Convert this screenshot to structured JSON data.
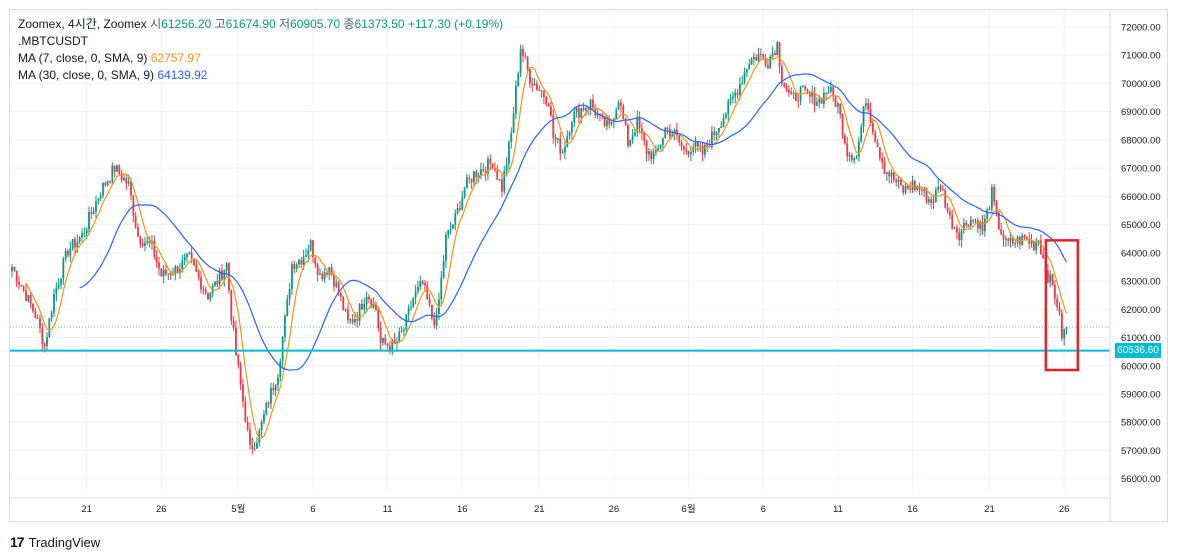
{
  "header": {
    "line1_prefix": "Zoomex, 4시간, Zoomex",
    "open_label": "시",
    "open": "61256.20",
    "high_label": "고",
    "high": "61674.90",
    "low_label": "저",
    "low": "60905.70",
    "close_label": "종",
    "close": "61373.50",
    "change": "+117.30 (+0.19%)",
    "symbol": ".MBTCUSDT",
    "ma7_label": "MA (7, close, 0, SMA, 9)",
    "ma7_value": "62757.97",
    "ma30_label": "MA (30, close, 0, SMA, 9)",
    "ma30_value": "64139.92"
  },
  "footer": {
    "logo": "17",
    "brand": "TradingView"
  },
  "colors": {
    "up": "#089981",
    "down": "#f23645",
    "ma7": "#f7931a",
    "ma30": "#2962ff",
    "hline": "#00bcd4",
    "box": "#e8202c",
    "grid": "#f0f3fa"
  },
  "chart_data": {
    "type": "candlestick",
    "ylim": [
      55600,
      72600
    ],
    "y_ticks": [
      "72000.00",
      "71000.00",
      "70000.00",
      "69000.00",
      "68000.00",
      "67000.00",
      "66000.00",
      "65000.00",
      "64000.00",
      "63000.00",
      "62000.00",
      "61000.00",
      "60000.00",
      "59000.00",
      "58000.00",
      "57000.00",
      "56000.00"
    ],
    "x_ticks": [
      "21",
      "26",
      "5월",
      "6",
      "11",
      "16",
      "21",
      "26",
      "6월",
      "6",
      "11",
      "16",
      "21",
      "26"
    ],
    "horizontal_line": {
      "value": 60536.6,
      "label": "60536.60"
    },
    "last_close": 61373.5,
    "anchors": [
      [
        0,
        63500
      ],
      [
        6,
        62500
      ],
      [
        10,
        61800
      ],
      [
        14,
        60700
      ],
      [
        18,
        62500
      ],
      [
        24,
        64100
      ],
      [
        30,
        64600
      ],
      [
        38,
        66200
      ],
      [
        44,
        67000
      ],
      [
        50,
        66400
      ],
      [
        54,
        64600
      ],
      [
        60,
        64200
      ],
      [
        64,
        63200
      ],
      [
        70,
        63400
      ],
      [
        76,
        63800
      ],
      [
        80,
        63100
      ],
      [
        84,
        62500
      ],
      [
        88,
        63000
      ],
      [
        92,
        63600
      ],
      [
        94,
        61800
      ],
      [
        96,
        60400
      ],
      [
        100,
        58200
      ],
      [
        102,
        57000
      ],
      [
        106,
        57600
      ],
      [
        110,
        58800
      ],
      [
        114,
        59800
      ],
      [
        118,
        62200
      ],
      [
        120,
        63600
      ],
      [
        124,
        63800
      ],
      [
        128,
        64300
      ],
      [
        132,
        63200
      ],
      [
        136,
        63500
      ],
      [
        140,
        62600
      ],
      [
        144,
        61500
      ],
      [
        148,
        61800
      ],
      [
        152,
        62600
      ],
      [
        156,
        62000
      ],
      [
        158,
        60800
      ],
      [
        164,
        60700
      ],
      [
        168,
        61300
      ],
      [
        172,
        62400
      ],
      [
        176,
        62900
      ],
      [
        180,
        61700
      ],
      [
        182,
        61600
      ],
      [
        186,
        64500
      ],
      [
        190,
        65200
      ],
      [
        194,
        66300
      ],
      [
        198,
        66800
      ],
      [
        202,
        67000
      ],
      [
        206,
        67200
      ],
      [
        210,
        66300
      ],
      [
        214,
        68200
      ],
      [
        218,
        71300
      ],
      [
        222,
        70200
      ],
      [
        226,
        69800
      ],
      [
        230,
        69400
      ],
      [
        232,
        68100
      ],
      [
        236,
        67600
      ],
      [
        240,
        68800
      ],
      [
        244,
        69100
      ],
      [
        248,
        69300
      ],
      [
        252,
        68700
      ],
      [
        256,
        68400
      ],
      [
        260,
        69500
      ],
      [
        264,
        67900
      ],
      [
        268,
        68600
      ],
      [
        272,
        67600
      ],
      [
        276,
        67400
      ],
      [
        280,
        68400
      ],
      [
        284,
        68200
      ],
      [
        288,
        67600
      ],
      [
        292,
        67800
      ],
      [
        296,
        67500
      ],
      [
        300,
        68100
      ],
      [
        304,
        68700
      ],
      [
        308,
        69300
      ],
      [
        312,
        70000
      ],
      [
        316,
        70800
      ],
      [
        320,
        71000
      ],
      [
        324,
        70800
      ],
      [
        328,
        71400
      ],
      [
        330,
        70200
      ],
      [
        334,
        69400
      ],
      [
        338,
        69700
      ],
      [
        342,
        69500
      ],
      [
        346,
        69400
      ],
      [
        350,
        69800
      ],
      [
        354,
        69200
      ],
      [
        358,
        67600
      ],
      [
        362,
        67400
      ],
      [
        366,
        69500
      ],
      [
        370,
        68100
      ],
      [
        374,
        67000
      ],
      [
        378,
        66600
      ],
      [
        382,
        66200
      ],
      [
        386,
        66400
      ],
      [
        390,
        66200
      ],
      [
        394,
        65800
      ],
      [
        398,
        66400
      ],
      [
        402,
        65200
      ],
      [
        406,
        64700
      ],
      [
        410,
        65200
      ],
      [
        414,
        65100
      ],
      [
        416,
        64800
      ],
      [
        418,
        65400
      ],
      [
        420,
        66100
      ],
      [
        422,
        65200
      ],
      [
        426,
        64300
      ],
      [
        430,
        64400
      ],
      [
        434,
        64500
      ],
      [
        438,
        64300
      ],
      [
        440,
        64500
      ],
      [
        442,
        63800
      ],
      [
        444,
        63200
      ],
      [
        446,
        62800
      ],
      [
        448,
        62200
      ],
      [
        450,
        61100
      ],
      [
        452,
        61300
      ]
    ]
  }
}
